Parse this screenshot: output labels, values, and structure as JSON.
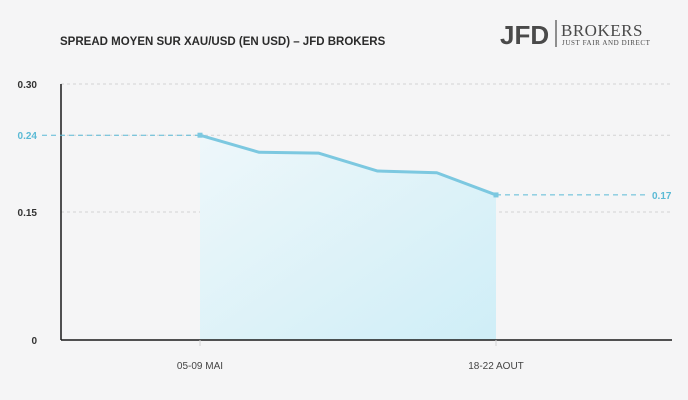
{
  "logo": {
    "main": "JFD",
    "brand": "BROKERS",
    "tagline": "JUST FAIR AND DIRECT",
    "color": "#4a4a4a"
  },
  "colors": {
    "line": "#7cc8e0",
    "guide": "#5bbad5",
    "grid": "#d4d4d4",
    "axis": "#1a1a1a",
    "fill_top": "#eef7fa",
    "fill_bottom": "#cfeef7"
  },
  "chart_data": {
    "type": "area",
    "title": "SPREAD MOYEN SUR XAU/USD (EN USD) – JFD BROKERS",
    "xlabel": "",
    "ylabel": "",
    "ylim": [
      0,
      0.3
    ],
    "yticks": [
      "0",
      "0.15",
      "0.24",
      "0.30"
    ],
    "ytick_values": [
      0,
      0.15,
      0.24,
      0.3
    ],
    "x_labels": [
      {
        "label": "05-09 MAI",
        "index": 0
      },
      {
        "label": "18-22 AOUT",
        "index": 5
      }
    ],
    "series": [
      {
        "values": [
          0.24,
          0.22,
          0.219,
          0.198,
          0.196,
          0.17
        ]
      }
    ],
    "annotations": [
      {
        "label": "0.24",
        "value": 0.24,
        "index": 0,
        "side": "left"
      },
      {
        "label": "0.17",
        "value": 0.17,
        "index": 5,
        "side": "right"
      }
    ],
    "grid": true,
    "legend": "none"
  }
}
